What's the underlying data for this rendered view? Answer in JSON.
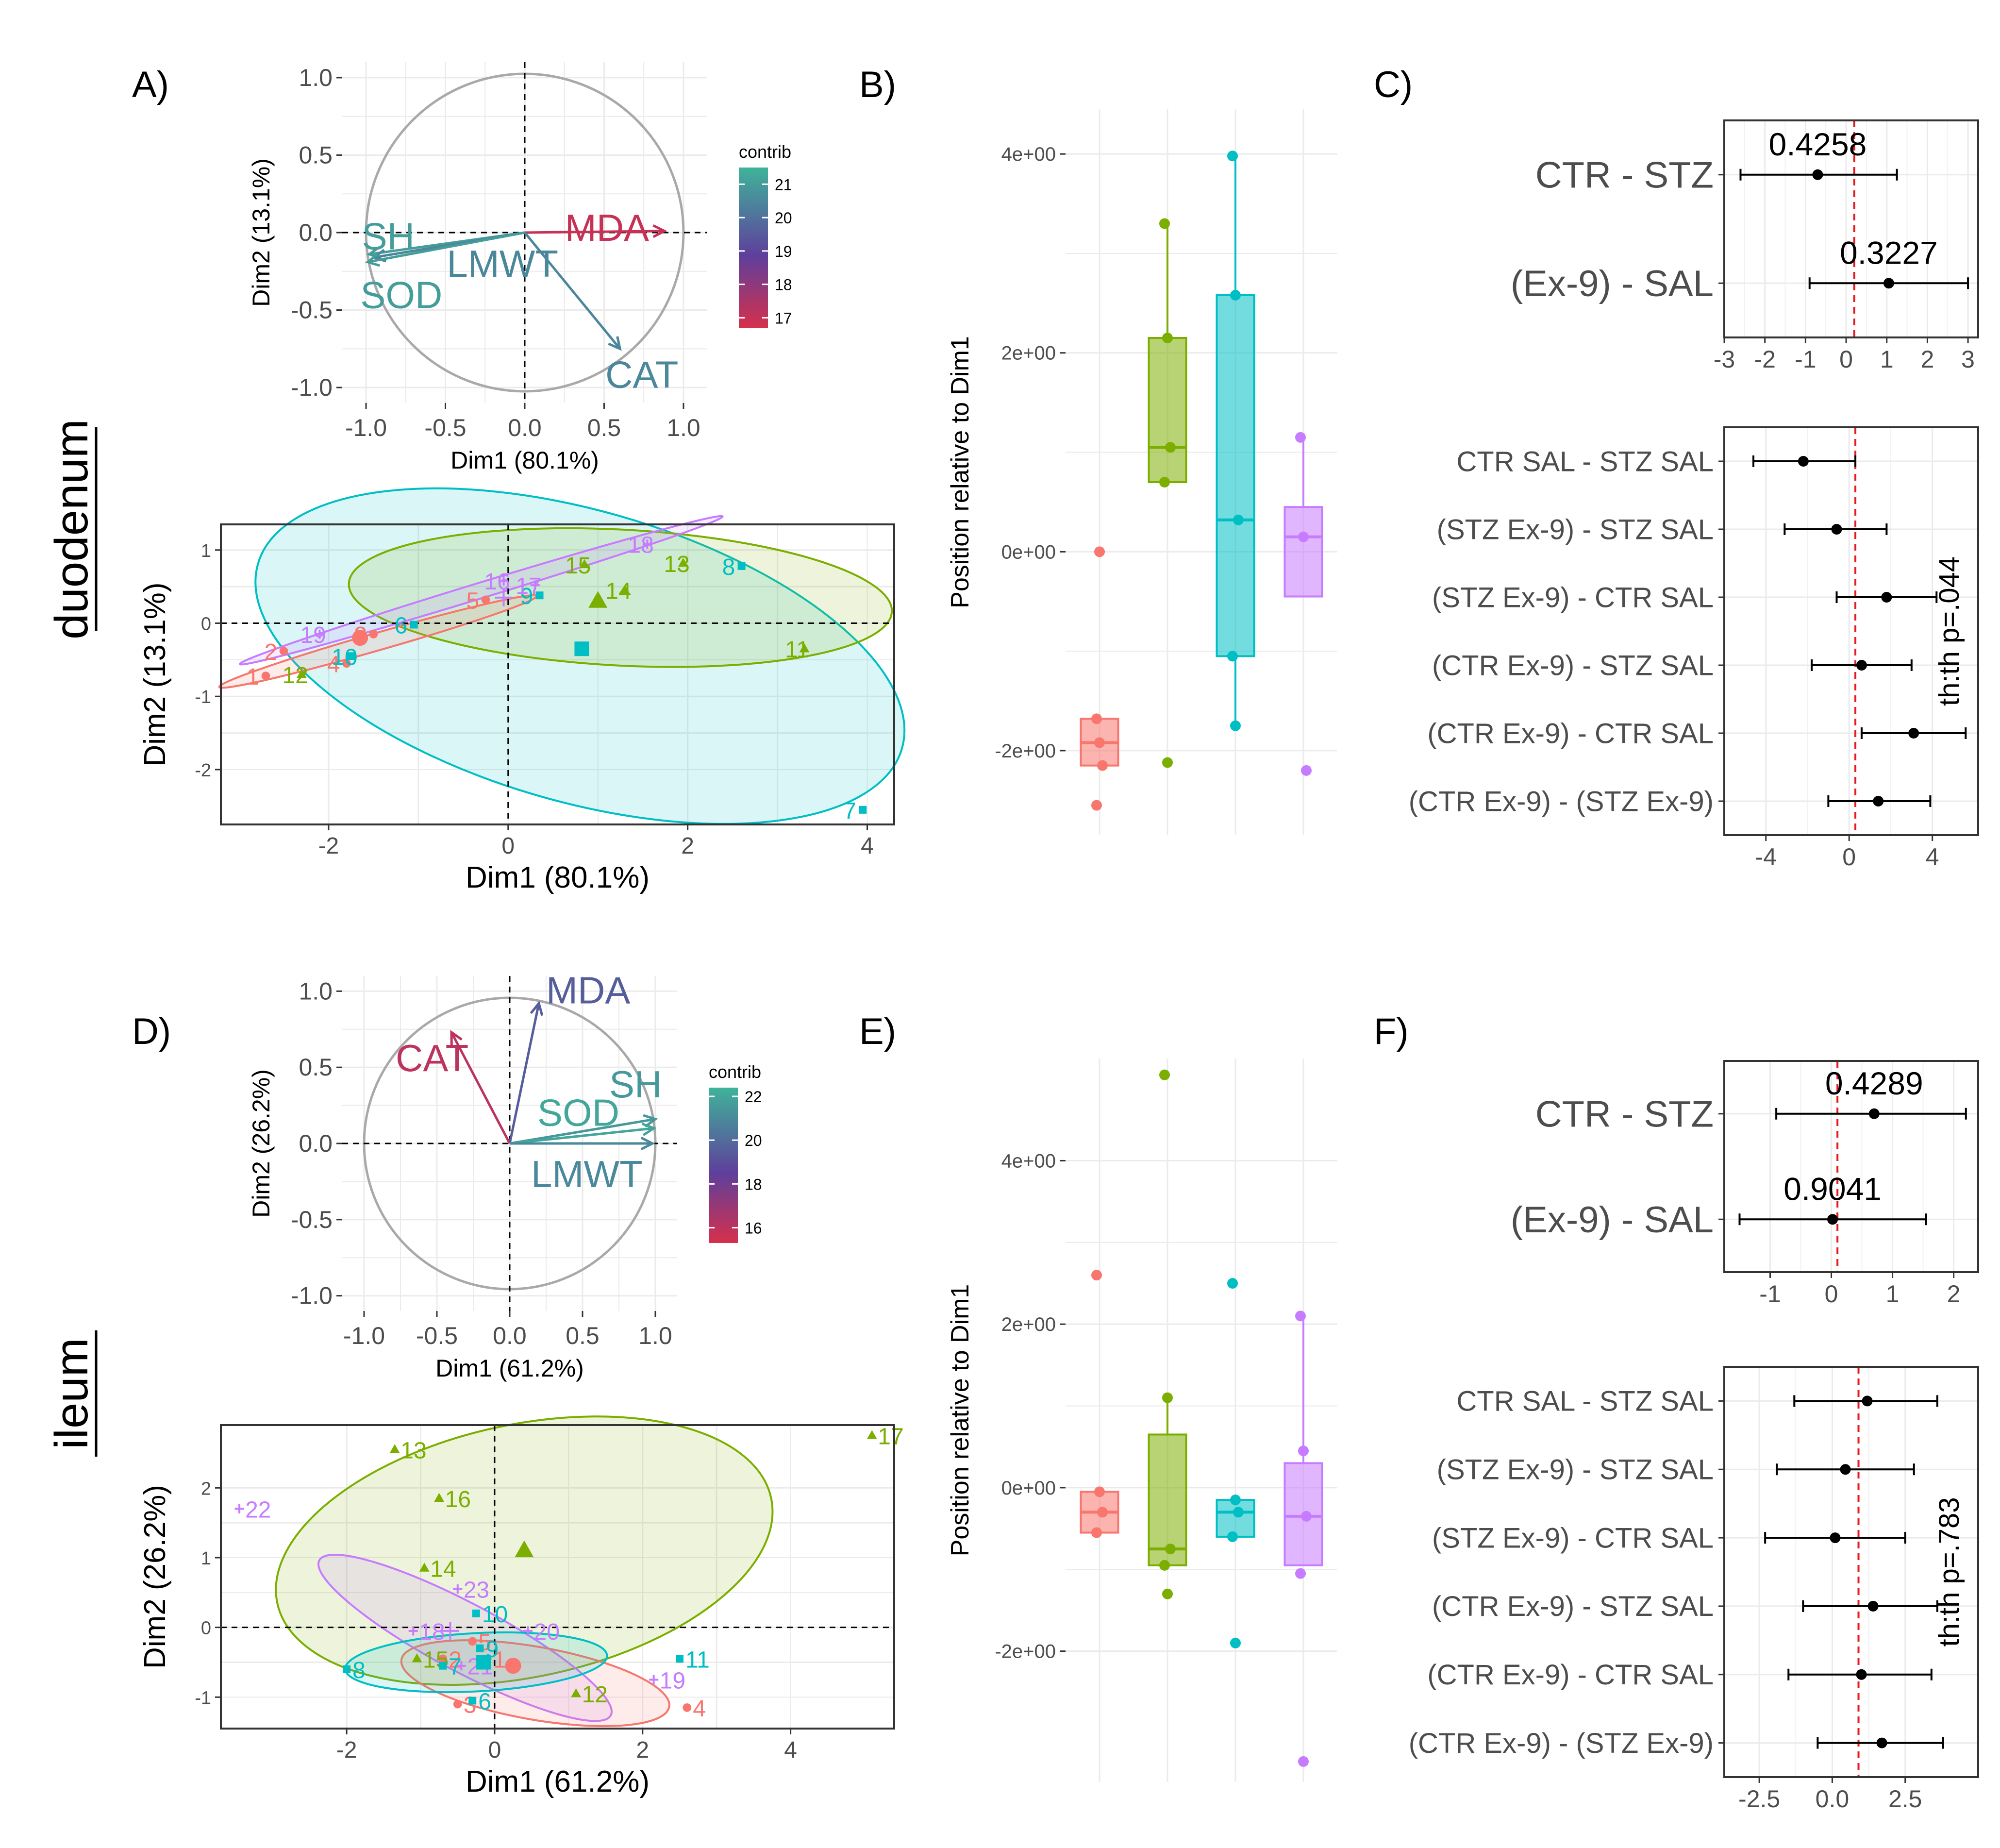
{
  "figure": {
    "panel_letters": [
      "A)",
      "B)",
      "C)",
      "D)",
      "E)",
      "F)"
    ],
    "row_labels": [
      "duodenum",
      "ileum"
    ]
  },
  "colors": {
    "group_red": "#F8766D",
    "group_green": "#7CAE00",
    "group_cyan": "#00BFC4",
    "group_purple": "#C77CFF",
    "arrow_red": "#C9304B",
    "arrow_teal": "#3FB39A",
    "arrow_purple": "#7B3294",
    "ref_line": "#E41A1C"
  },
  "chart_data": [
    {
      "id": "A_var",
      "type": "scatter",
      "subtype": "pca-variable-circle",
      "xlabel": "Dim1 (80.1%)",
      "ylabel": "Dim2 (13.1%)",
      "xlim": [
        -1.15,
        1.15
      ],
      "ylim": [
        -1.1,
        1.1
      ],
      "xticks": [
        "-1.0",
        "-0.5",
        "0.0",
        "0.5",
        "1.0"
      ],
      "yticks": [
        "-1.0",
        "-0.5",
        "0.0",
        "0.5",
        "1.0"
      ],
      "legend": {
        "title": "contrib",
        "ticks": [
          "21",
          "20",
          "19",
          "18",
          "17"
        ],
        "range": [
          16.7,
          21.5
        ]
      },
      "arrows": [
        {
          "name": "MDA",
          "x": 0.88,
          "y": 0.01,
          "contrib": 17
        },
        {
          "name": "SH",
          "x": -0.98,
          "y": -0.14,
          "contrib": 21
        },
        {
          "name": "LMWT",
          "x": -0.95,
          "y": -0.16,
          "contrib": 20.5
        },
        {
          "name": "SOD",
          "x": -0.99,
          "y": -0.19,
          "contrib": 21
        },
        {
          "name": "CAT",
          "x": 0.6,
          "y": -0.75,
          "contrib": 20.5
        }
      ]
    },
    {
      "id": "A_ind",
      "type": "scatter",
      "subtype": "pca-individuals",
      "xlabel": "Dim1 (80.1%)",
      "ylabel": "Dim2 (13.1%)",
      "xlim": [
        -3.2,
        4.3
      ],
      "ylim": [
        -2.75,
        1.35
      ],
      "xticks": [
        "-2",
        "0",
        "2",
        "4"
      ],
      "yticks": [
        "1",
        "0",
        "-1",
        "-2"
      ],
      "points": [
        {
          "label": "1",
          "x": -2.7,
          "y": -0.72,
          "g": 0
        },
        {
          "label": "2",
          "x": -2.5,
          "y": -0.38,
          "g": 0
        },
        {
          "label": "3",
          "x": -1.5,
          "y": -0.15,
          "g": 0
        },
        {
          "label": "4",
          "x": -1.8,
          "y": -0.55,
          "g": 0
        },
        {
          "label": "5",
          "x": -0.25,
          "y": 0.32,
          "g": 0
        },
        {
          "label": "11",
          "x": 3.3,
          "y": -0.35,
          "g": 1
        },
        {
          "label": "12",
          "x": -2.3,
          "y": -0.7,
          "g": 1
        },
        {
          "label": "13",
          "x": 1.95,
          "y": 0.82,
          "g": 1
        },
        {
          "label": "14",
          "x": 1.3,
          "y": 0.45,
          "g": 1
        },
        {
          "label": "15",
          "x": 0.85,
          "y": 0.8,
          "g": 1
        },
        {
          "label": "6",
          "x": -1.05,
          "y": -0.02,
          "g": 2
        },
        {
          "label": "7",
          "x": 3.95,
          "y": -2.55,
          "g": 2
        },
        {
          "label": "8",
          "x": 2.6,
          "y": 0.78,
          "g": 2
        },
        {
          "label": "9",
          "x": 0.35,
          "y": 0.38,
          "g": 2
        },
        {
          "label": "10",
          "x": -1.75,
          "y": -0.45,
          "g": 2
        },
        {
          "label": "16",
          "x": -0.05,
          "y": 0.58,
          "g": 3
        },
        {
          "label": "17",
          "x": 0.3,
          "y": 0.52,
          "g": 3
        },
        {
          "label": "18",
          "x": 1.55,
          "y": 1.08,
          "g": 3
        },
        {
          "label": "19",
          "x": -2.1,
          "y": -0.15,
          "g": 3
        }
      ],
      "centroids": [
        {
          "x": -1.65,
          "y": -0.2,
          "g": 0
        },
        {
          "x": 1.0,
          "y": 0.3,
          "g": 1
        },
        {
          "x": 0.82,
          "y": -0.35,
          "g": 2
        },
        {
          "x": -0.05,
          "y": 0.35,
          "g": 3
        }
      ]
    },
    {
      "id": "B",
      "type": "bar",
      "subtype": "boxplot",
      "ylabel": "Position relative to Dim1",
      "ylim": [
        -2.85,
        4.45
      ],
      "yticks": [
        "4e+00",
        "2e+00",
        "0e+00",
        "-2e+00"
      ],
      "groups": [
        {
          "g": 0,
          "q1": -2.15,
          "med": -1.92,
          "q3": -1.68,
          "lo": -2.15,
          "hi": -1.68,
          "points": [
            -1.68,
            -1.92,
            -2.15,
            -2.55,
            0.0
          ]
        },
        {
          "g": 1,
          "q1": 0.7,
          "med": 1.05,
          "q3": 2.15,
          "lo": 0.7,
          "hi": 3.3,
          "points": [
            3.3,
            2.15,
            1.05,
            0.7,
            -2.12
          ]
        },
        {
          "g": 2,
          "q1": -1.05,
          "med": 0.32,
          "q3": 2.58,
          "lo": -1.75,
          "hi": 3.98,
          "points": [
            3.98,
            2.58,
            0.32,
            -1.05,
            -1.75
          ]
        },
        {
          "g": 3,
          "q1": -0.45,
          "med": 0.15,
          "q3": 0.45,
          "lo": -0.45,
          "hi": 1.15,
          "points": [
            1.15,
            0.15,
            -2.2
          ]
        }
      ]
    },
    {
      "id": "C_top",
      "type": "scatter",
      "subtype": "forest",
      "xlim": [
        -3.0,
        3.25
      ],
      "xticks": [
        "-3",
        "-2",
        "-1",
        "0",
        "1",
        "2",
        "3"
      ],
      "rows": [
        {
          "label": "CTR - STZ",
          "est": -0.7,
          "lo": -2.6,
          "hi": 1.25,
          "pval": "0.4258"
        },
        {
          "label": "(Ex-9) - SAL",
          "est": 1.05,
          "lo": -0.9,
          "hi": 3.0,
          "pval": "0.3227"
        }
      ],
      "ref": 0.2
    },
    {
      "id": "C_bottom",
      "type": "scatter",
      "subtype": "forest",
      "xlim": [
        -6.0,
        6.2
      ],
      "xticks": [
        "-4",
        "0",
        "4"
      ],
      "annotation": "th:th p=.044",
      "rows": [
        {
          "label": "CTR SAL - STZ SAL",
          "est": -2.2,
          "lo": -4.6,
          "hi": 0.3
        },
        {
          "label": "(STZ Ex-9) - STZ SAL",
          "est": -0.6,
          "lo": -3.1,
          "hi": 1.8
        },
        {
          "label": "(STZ Ex-9) - CTR SAL",
          "est": 1.8,
          "lo": -0.6,
          "hi": 4.2
        },
        {
          "label": "(CTR Ex-9) - STZ SAL",
          "est": 0.6,
          "lo": -1.8,
          "hi": 3.0
        },
        {
          "label": "(CTR Ex-9) - CTR SAL",
          "est": 3.1,
          "lo": 0.6,
          "hi": 5.6
        },
        {
          "label": "(CTR Ex-9) - (STZ Ex-9)",
          "est": 1.4,
          "lo": -1.0,
          "hi": 3.9
        }
      ],
      "ref": 0.3
    },
    {
      "id": "D_var",
      "type": "scatter",
      "subtype": "pca-variable-circle",
      "xlabel": "Dim1 (61.2%)",
      "ylabel": "Dim2 (26.2%)",
      "xlim": [
        -1.15,
        1.15
      ],
      "ylim": [
        -1.1,
        1.1
      ],
      "xticks": [
        "-1.0",
        "-0.5",
        "0.0",
        "0.5",
        "1.0"
      ],
      "yticks": [
        "-1.0",
        "-0.5",
        "0.0",
        "0.5",
        "1.0"
      ],
      "legend": {
        "title": "contrib",
        "ticks": [
          "22",
          "20",
          "18",
          "16"
        ],
        "range": [
          15.3,
          22.4
        ]
      },
      "arrows": [
        {
          "name": "MDA",
          "x": 0.2,
          "y": 0.92,
          "contrib": 19.5
        },
        {
          "name": "CAT",
          "x": -0.4,
          "y": 0.73,
          "contrib": 16
        },
        {
          "name": "SH",
          "x": 1.0,
          "y": 0.16,
          "contrib": 21.5
        },
        {
          "name": "SOD",
          "x": 0.99,
          "y": 0.1,
          "contrib": 22
        },
        {
          "name": "LMWT",
          "x": 0.98,
          "y": 0.0,
          "contrib": 21
        }
      ]
    },
    {
      "id": "D_ind",
      "type": "scatter",
      "subtype": "pca-individuals",
      "xlabel": "Dim1 (61.2%)",
      "ylabel": "Dim2 (26.2%)",
      "xlim": [
        -3.7,
        5.4
      ],
      "ylim": [
        -1.45,
        2.9
      ],
      "xticks": [
        "-2",
        "0",
        "2",
        "4"
      ],
      "yticks": [
        "2",
        "1",
        "0",
        "-1"
      ],
      "points": [
        {
          "label": "1",
          "x": -0.1,
          "y": -0.45,
          "g": 0
        },
        {
          "label": "2",
          "x": -0.7,
          "y": -0.45,
          "g": 0
        },
        {
          "label": "3",
          "x": -0.5,
          "y": -1.1,
          "g": 0
        },
        {
          "label": "4",
          "x": 2.6,
          "y": -1.15,
          "g": 0
        },
        {
          "label": "5",
          "x": -0.3,
          "y": -0.2,
          "g": 0
        },
        {
          "label": "12",
          "x": 1.1,
          "y": -0.95,
          "g": 1
        },
        {
          "label": "13",
          "x": -1.35,
          "y": 2.55,
          "g": 1
        },
        {
          "label": "14",
          "x": -0.95,
          "y": 0.85,
          "g": 1
        },
        {
          "label": "15",
          "x": -1.05,
          "y": -0.45,
          "g": 1
        },
        {
          "label": "16",
          "x": -0.75,
          "y": 1.85,
          "g": 1
        },
        {
          "label": "17",
          "x": 5.1,
          "y": 2.75,
          "g": 1
        },
        {
          "label": "6",
          "x": -0.3,
          "y": -1.05,
          "g": 2
        },
        {
          "label": "7",
          "x": -0.7,
          "y": -0.55,
          "g": 2
        },
        {
          "label": "8",
          "x": -2.0,
          "y": -0.6,
          "g": 2
        },
        {
          "label": "9",
          "x": -0.2,
          "y": -0.3,
          "g": 2
        },
        {
          "label": "10",
          "x": -0.25,
          "y": 0.2,
          "g": 2
        },
        {
          "label": "11",
          "x": 2.5,
          "y": -0.45,
          "g": 2
        },
        {
          "label": "18",
          "x": -1.1,
          "y": -0.05,
          "g": 3
        },
        {
          "label": "19",
          "x": 2.15,
          "y": -0.75,
          "g": 3
        },
        {
          "label": "20",
          "x": 0.45,
          "y": -0.05,
          "g": 3
        },
        {
          "label": "21",
          "x": -0.45,
          "y": -0.55,
          "g": 3
        },
        {
          "label": "22",
          "x": -3.45,
          "y": 1.7,
          "g": 3
        },
        {
          "label": "23",
          "x": -0.5,
          "y": 0.55,
          "g": 3
        }
      ],
      "centroids": [
        {
          "x": 0.25,
          "y": -0.55,
          "g": 0
        },
        {
          "x": 0.4,
          "y": 1.1,
          "g": 1
        },
        {
          "x": -0.15,
          "y": -0.5,
          "g": 2
        },
        {
          "x": -0.6,
          "y": -0.05,
          "g": 3
        }
      ]
    },
    {
      "id": "E",
      "type": "bar",
      "subtype": "boxplot",
      "ylabel": "Position relative to Dim1",
      "ylim": [
        -3.6,
        5.25
      ],
      "yticks": [
        "4e+00",
        "2e+00",
        "0e+00",
        "-2e+00"
      ],
      "groups": [
        {
          "g": 0,
          "q1": -0.55,
          "med": -0.3,
          "q3": -0.05,
          "lo": -0.55,
          "hi": -0.05,
          "points": [
            2.6,
            -0.05,
            -0.3,
            -0.55
          ]
        },
        {
          "g": 1,
          "q1": -0.95,
          "med": -0.75,
          "q3": 0.65,
          "lo": -0.95,
          "hi": 1.1,
          "points": [
            5.05,
            1.1,
            -0.75,
            -0.95,
            -1.3
          ]
        },
        {
          "g": 2,
          "q1": -0.6,
          "med": -0.3,
          "q3": -0.15,
          "lo": -0.6,
          "hi": -0.15,
          "points": [
            2.5,
            -0.15,
            -0.3,
            -0.6,
            -1.9
          ]
        },
        {
          "g": 3,
          "q1": -0.95,
          "med": -0.35,
          "q3": 0.3,
          "lo": -0.95,
          "hi": 2.1,
          "points": [
            2.1,
            0.45,
            -0.35,
            -1.05,
            -3.35
          ]
        }
      ]
    },
    {
      "id": "F_top",
      "type": "scatter",
      "subtype": "forest",
      "xlim": [
        -1.75,
        2.4
      ],
      "xticks": [
        "-1",
        "0",
        "1",
        "2"
      ],
      "rows": [
        {
          "label": "CTR - STZ",
          "est": 0.7,
          "lo": -0.9,
          "hi": 2.2,
          "pval": "0.4289"
        },
        {
          "label": "(Ex-9) - SAL",
          "est": 0.02,
          "lo": -1.5,
          "hi": 1.55,
          "pval": "0.9041"
        }
      ],
      "ref": 0.1
    },
    {
      "id": "F_bottom",
      "type": "scatter",
      "subtype": "forest",
      "xlim": [
        -3.7,
        5.0
      ],
      "xticks": [
        "-2.5",
        "0.0",
        "2.5"
      ],
      "annotation": "th:th p=.783",
      "rows": [
        {
          "label": "CTR SAL - STZ SAL",
          "est": 1.2,
          "lo": -1.3,
          "hi": 3.6
        },
        {
          "label": "(STZ Ex-9) - STZ SAL",
          "est": 0.45,
          "lo": -1.9,
          "hi": 2.8
        },
        {
          "label": "(STZ Ex-9) - CTR SAL",
          "est": 0.1,
          "lo": -2.3,
          "hi": 2.5
        },
        {
          "label": "(CTR Ex-9) - STZ SAL",
          "est": 1.4,
          "lo": -1.0,
          "hi": 3.6
        },
        {
          "label": "(CTR Ex-9) - CTR SAL",
          "est": 1.0,
          "lo": -1.5,
          "hi": 3.4
        },
        {
          "label": "(CTR Ex-9) - (STZ Ex-9)",
          "est": 1.7,
          "lo": -0.5,
          "hi": 3.8
        }
      ],
      "ref": 0.9
    }
  ]
}
